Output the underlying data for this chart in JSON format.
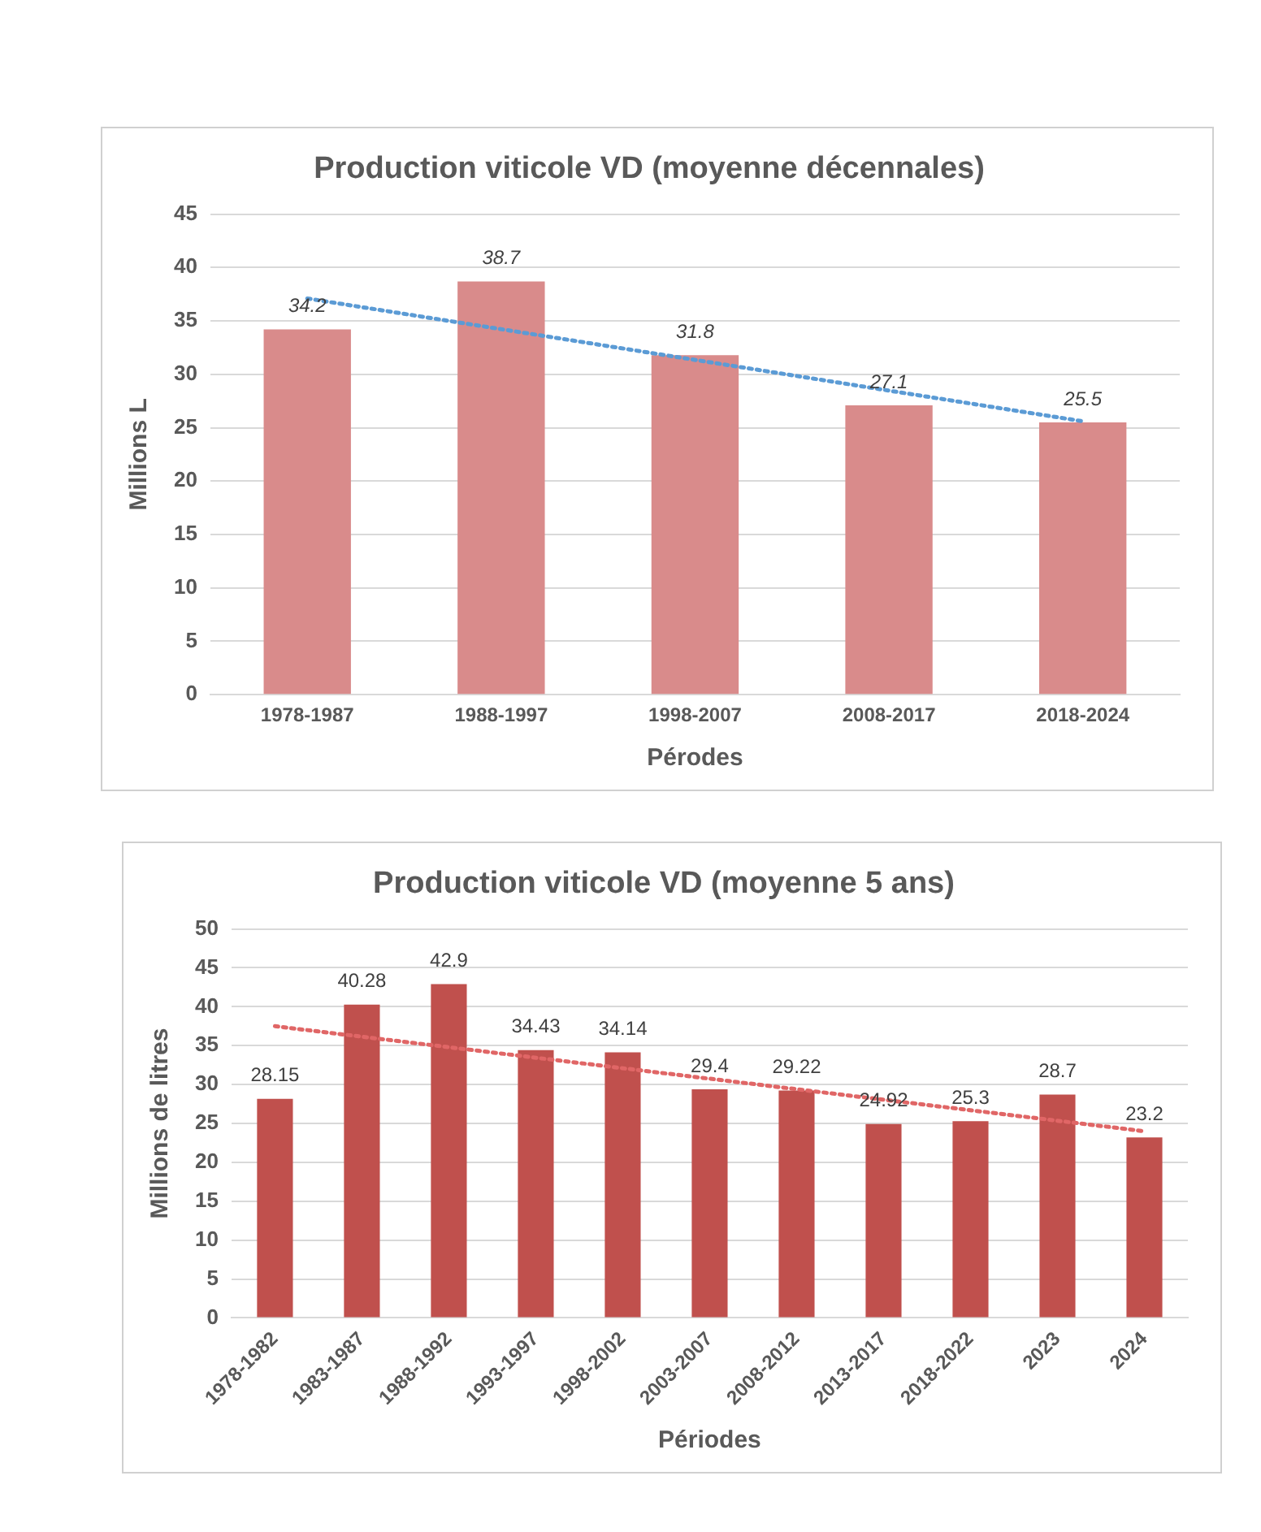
{
  "chart_data": [
    {
      "type": "bar",
      "title": "Production viticole VD (moyenne décennales)",
      "xlabel": "Pérodes",
      "ylabel": "Millions L",
      "categories": [
        "1978-1987",
        "1988-1997",
        "1998-2007",
        "2008-2017",
        "2018-2024"
      ],
      "ylim": [
        0,
        45
      ],
      "yticks": [
        0,
        5,
        10,
        15,
        20,
        25,
        30,
        35,
        40,
        45
      ],
      "grid": "y",
      "legend": false,
      "series": [
        {
          "color": "#d98b8b",
          "values": [
            34.2,
            38.7,
            31.8,
            27.1,
            25.5
          ],
          "value_labels": [
            "34.2",
            "38.7",
            "31.8",
            "27.1",
            "25.5"
          ]
        },
        {
          "type": "line",
          "color": "#5b9bd5",
          "values": [
            37.1,
            null,
            null,
            null,
            25.6
          ],
          "line_style": "dotted",
          "marker": "none"
        }
      ]
    },
    {
      "type": "bar",
      "title": "Production viticole VD (moyenne 5 ans)",
      "xlabel": "Périodes",
      "ylabel": "Millions de litres",
      "categories": [
        "1978-1982",
        "1983-1987",
        "1988-1992",
        "1993-1997",
        "1998-2002",
        "2003-2007",
        "2008-2012",
        "2013-2017",
        "2018-2022",
        "2023",
        "2024"
      ],
      "ylim": [
        0,
        50
      ],
      "yticks": [
        0,
        5,
        10,
        15,
        20,
        25,
        30,
        35,
        40,
        45,
        50
      ],
      "grid": "y",
      "legend": false,
      "series": [
        {
          "color": "#c0504d",
          "values": [
            28.15,
            40.28,
            42.9,
            34.43,
            34.14,
            29.4,
            29.22,
            24.92,
            25.3,
            28.7,
            23.2
          ],
          "value_labels": [
            "28.15",
            "40.28",
            "42.9",
            "34.43",
            "34.14",
            "29.4",
            "29.22",
            "24.92",
            "25.3",
            "28.7",
            "23.2"
          ]
        },
        {
          "type": "line",
          "color": "#e06666",
          "values": [
            37.5,
            null,
            null,
            null,
            null,
            null,
            null,
            null,
            null,
            null,
            24
          ],
          "line_style": "dotted",
          "marker": "none"
        }
      ]
    }
  ]
}
